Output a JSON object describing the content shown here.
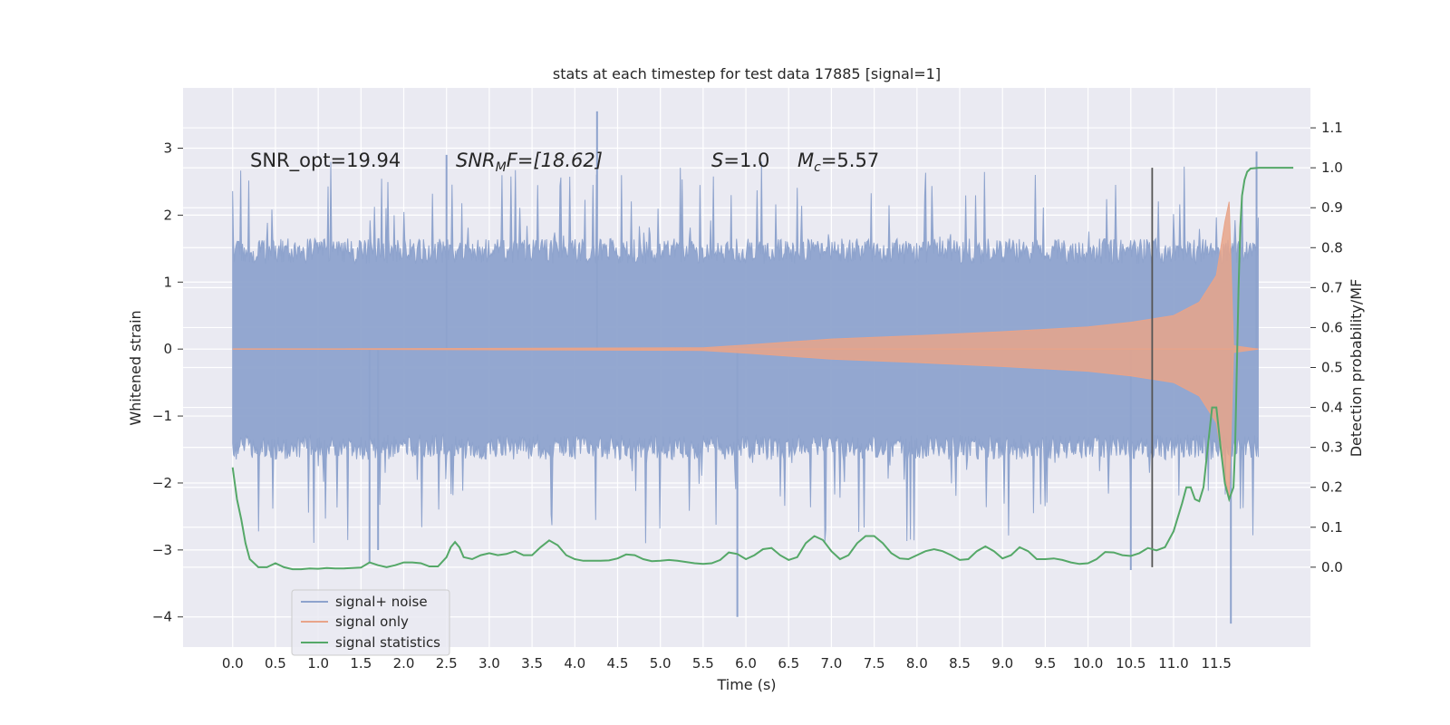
{
  "chart_data": {
    "type": "line",
    "title": "stats at each timestep for test data 17885 [signal=1]",
    "xlabel": "Time (s)",
    "ylabel_left": "Whitened strain",
    "ylabel_right": "Detection probability/MF",
    "xlim": [
      -0.58,
      12.6
    ],
    "ylim_left": [
      -4.45,
      3.9
    ],
    "ylim_right": [
      -0.2,
      1.2
    ],
    "x_ticks": [
      "0.0",
      "0.5",
      "1.0",
      "1.5",
      "2.0",
      "2.5",
      "3.0",
      "3.5",
      "4.0",
      "4.5",
      "5.0",
      "5.5",
      "6.0",
      "6.5",
      "7.0",
      "7.5",
      "8.0",
      "8.5",
      "9.0",
      "9.5",
      "10.0",
      "10.5",
      "11.0",
      "11.5"
    ],
    "y_ticks_left": [
      "3",
      "2",
      "1",
      "0",
      "−1",
      "−2",
      "−3",
      "−4"
    ],
    "y_ticks_right": [
      "1.1",
      "1.0",
      "0.9",
      "0.8",
      "0.7",
      "0.6",
      "0.5",
      "0.4",
      "0.3",
      "0.2",
      "0.1",
      "0.0"
    ],
    "grid": true,
    "background": "#eaeaf2",
    "legend_position": "lower-left",
    "annotations": {
      "snr_opt": "SNR_opt=19.94",
      "snr_mf_base": "SNR",
      "snr_mf_sub": "M",
      "snr_mf_rest": "F=[18.62]",
      "s_sym": "S",
      "s_val": "=1.0",
      "mc_base": "M",
      "mc_sub": "c",
      "mc_val": "=5.57"
    },
    "vertical_line": {
      "x": 10.75,
      "color": "#555555"
    },
    "series": [
      {
        "name": "signal+ noise",
        "axis": "left",
        "color": "#8ea3cd",
        "description": "whitened noisy strain, 0 to ~12.0 s",
        "envelope": {
          "x_start": 0.0,
          "x_end": 11.99,
          "typical_peak": 1.5,
          "max": 3.6,
          "min": -4.1
        }
      },
      {
        "name": "signal only",
        "axis": "left",
        "color": "#e8a48a",
        "description": "chirp envelope",
        "envelope_points": [
          [
            0.0,
            0.0
          ],
          [
            5.5,
            0.02
          ],
          [
            6.0,
            0.06
          ],
          [
            7.0,
            0.15
          ],
          [
            8.0,
            0.2
          ],
          [
            9.0,
            0.26
          ],
          [
            10.0,
            0.33
          ],
          [
            10.5,
            0.4
          ],
          [
            11.0,
            0.5
          ],
          [
            11.3,
            0.7
          ],
          [
            11.5,
            1.1
          ],
          [
            11.6,
            1.9
          ],
          [
            11.65,
            2.2
          ],
          [
            11.7,
            0.05
          ],
          [
            11.99,
            0.0
          ]
        ]
      },
      {
        "name": "signal statistics",
        "axis": "right",
        "color": "#55a868",
        "points": [
          [
            0.0,
            0.25
          ],
          [
            0.05,
            0.17
          ],
          [
            0.1,
            0.12
          ],
          [
            0.15,
            0.06
          ],
          [
            0.2,
            0.02
          ],
          [
            0.3,
            0.0
          ],
          [
            0.4,
            0.0
          ],
          [
            0.5,
            0.01
          ],
          [
            0.6,
            0.0
          ],
          [
            0.7,
            -0.005
          ],
          [
            0.8,
            -0.005
          ],
          [
            0.9,
            -0.003
          ],
          [
            1.0,
            -0.004
          ],
          [
            1.1,
            -0.002
          ],
          [
            1.2,
            -0.003
          ],
          [
            1.3,
            -0.003
          ],
          [
            1.4,
            -0.002
          ],
          [
            1.5,
            -0.001
          ],
          [
            1.6,
            0.012
          ],
          [
            1.7,
            0.005
          ],
          [
            1.8,
            0.0
          ],
          [
            1.9,
            0.005
          ],
          [
            2.0,
            0.012
          ],
          [
            2.1,
            0.012
          ],
          [
            2.2,
            0.01
          ],
          [
            2.3,
            0.002
          ],
          [
            2.4,
            0.002
          ],
          [
            2.5,
            0.025
          ],
          [
            2.55,
            0.05
          ],
          [
            2.6,
            0.063
          ],
          [
            2.65,
            0.05
          ],
          [
            2.7,
            0.025
          ],
          [
            2.8,
            0.02
          ],
          [
            2.9,
            0.03
          ],
          [
            3.0,
            0.035
          ],
          [
            3.1,
            0.03
          ],
          [
            3.2,
            0.033
          ],
          [
            3.3,
            0.04
          ],
          [
            3.4,
            0.03
          ],
          [
            3.5,
            0.03
          ],
          [
            3.6,
            0.05
          ],
          [
            3.7,
            0.067
          ],
          [
            3.8,
            0.055
          ],
          [
            3.9,
            0.03
          ],
          [
            4.0,
            0.02
          ],
          [
            4.1,
            0.016
          ],
          [
            4.2,
            0.016
          ],
          [
            4.3,
            0.016
          ],
          [
            4.4,
            0.017
          ],
          [
            4.5,
            0.022
          ],
          [
            4.6,
            0.032
          ],
          [
            4.7,
            0.03
          ],
          [
            4.8,
            0.02
          ],
          [
            4.9,
            0.015
          ],
          [
            5.0,
            0.016
          ],
          [
            5.1,
            0.018
          ],
          [
            5.2,
            0.016
          ],
          [
            5.3,
            0.013
          ],
          [
            5.4,
            0.01
          ],
          [
            5.5,
            0.008
          ],
          [
            5.6,
            0.01
          ],
          [
            5.7,
            0.018
          ],
          [
            5.8,
            0.037
          ],
          [
            5.9,
            0.033
          ],
          [
            6.0,
            0.02
          ],
          [
            6.1,
            0.03
          ],
          [
            6.2,
            0.045
          ],
          [
            6.3,
            0.048
          ],
          [
            6.4,
            0.03
          ],
          [
            6.5,
            0.018
          ],
          [
            6.6,
            0.025
          ],
          [
            6.7,
            0.06
          ],
          [
            6.8,
            0.078
          ],
          [
            6.9,
            0.068
          ],
          [
            7.0,
            0.04
          ],
          [
            7.1,
            0.02
          ],
          [
            7.2,
            0.03
          ],
          [
            7.3,
            0.06
          ],
          [
            7.4,
            0.078
          ],
          [
            7.5,
            0.078
          ],
          [
            7.6,
            0.06
          ],
          [
            7.7,
            0.035
          ],
          [
            7.8,
            0.022
          ],
          [
            7.9,
            0.02
          ],
          [
            8.0,
            0.03
          ],
          [
            8.1,
            0.04
          ],
          [
            8.2,
            0.045
          ],
          [
            8.3,
            0.04
          ],
          [
            8.4,
            0.03
          ],
          [
            8.5,
            0.018
          ],
          [
            8.6,
            0.02
          ],
          [
            8.7,
            0.04
          ],
          [
            8.8,
            0.052
          ],
          [
            8.9,
            0.04
          ],
          [
            9.0,
            0.022
          ],
          [
            9.1,
            0.03
          ],
          [
            9.2,
            0.05
          ],
          [
            9.3,
            0.04
          ],
          [
            9.4,
            0.02
          ],
          [
            9.5,
            0.02
          ],
          [
            9.6,
            0.022
          ],
          [
            9.7,
            0.018
          ],
          [
            9.8,
            0.012
          ],
          [
            9.9,
            0.008
          ],
          [
            10.0,
            0.01
          ],
          [
            10.1,
            0.02
          ],
          [
            10.2,
            0.038
          ],
          [
            10.3,
            0.037
          ],
          [
            10.4,
            0.03
          ],
          [
            10.5,
            0.028
          ],
          [
            10.6,
            0.035
          ],
          [
            10.7,
            0.048
          ],
          [
            10.8,
            0.042
          ],
          [
            10.9,
            0.05
          ],
          [
            11.0,
            0.09
          ],
          [
            11.1,
            0.16
          ],
          [
            11.15,
            0.2
          ],
          [
            11.2,
            0.2
          ],
          [
            11.25,
            0.17
          ],
          [
            11.3,
            0.165
          ],
          [
            11.35,
            0.2
          ],
          [
            11.4,
            0.3
          ],
          [
            11.45,
            0.4
          ],
          [
            11.5,
            0.4
          ],
          [
            11.55,
            0.3
          ],
          [
            11.6,
            0.21
          ],
          [
            11.65,
            0.17
          ],
          [
            11.7,
            0.2
          ],
          [
            11.72,
            0.3
          ],
          [
            11.74,
            0.5
          ],
          [
            11.76,
            0.7
          ],
          [
            11.78,
            0.85
          ],
          [
            11.8,
            0.93
          ],
          [
            11.83,
            0.97
          ],
          [
            11.86,
            0.99
          ],
          [
            11.9,
            0.998
          ],
          [
            12.0,
            1.0
          ],
          [
            12.3,
            1.0
          ],
          [
            12.4,
            1.0
          ]
        ]
      }
    ]
  }
}
